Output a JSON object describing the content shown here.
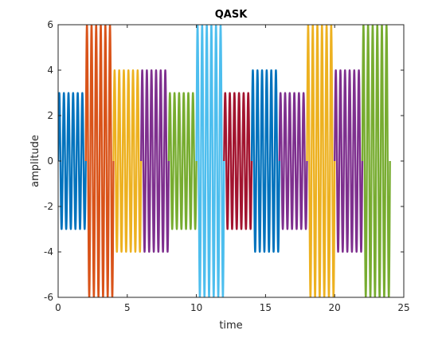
{
  "chart_data": {
    "type": "line",
    "title": "QASK",
    "xlabel": "time",
    "ylabel": "amplitude",
    "xlim": [
      0,
      25
    ],
    "ylim": [
      -6,
      6
    ],
    "xticks": [
      0,
      5,
      10,
      15,
      20,
      25
    ],
    "yticks": [
      -6,
      -4,
      -2,
      0,
      2,
      4,
      6
    ],
    "grid": false,
    "legend": "none",
    "carrier_cycles_per_unit": 3,
    "segments": [
      {
        "start": 0,
        "end": 2,
        "amplitude": 3,
        "color": "#0072BD"
      },
      {
        "start": 2,
        "end": 4,
        "amplitude": 6,
        "color": "#D95319"
      },
      {
        "start": 4,
        "end": 6,
        "amplitude": 4,
        "color": "#EDB120"
      },
      {
        "start": 6,
        "end": 8,
        "amplitude": 4,
        "color": "#7E2F8E"
      },
      {
        "start": 8,
        "end": 10,
        "amplitude": 3,
        "color": "#77AC30"
      },
      {
        "start": 10,
        "end": 12,
        "amplitude": 6,
        "color": "#4DBEEE"
      },
      {
        "start": 12,
        "end": 14,
        "amplitude": 3,
        "color": "#A2142F"
      },
      {
        "start": 14,
        "end": 16,
        "amplitude": 4,
        "color": "#0072BD"
      },
      {
        "start": 16,
        "end": 18,
        "amplitude": 3,
        "color": "#7E2F8E"
      },
      {
        "start": 18,
        "end": 20,
        "amplitude": 6,
        "color": "#EDB120"
      },
      {
        "start": 20,
        "end": 22,
        "amplitude": 4,
        "color": "#7E2F8E"
      },
      {
        "start": 22,
        "end": 24,
        "amplitude": 6,
        "color": "#77AC30"
      }
    ]
  }
}
